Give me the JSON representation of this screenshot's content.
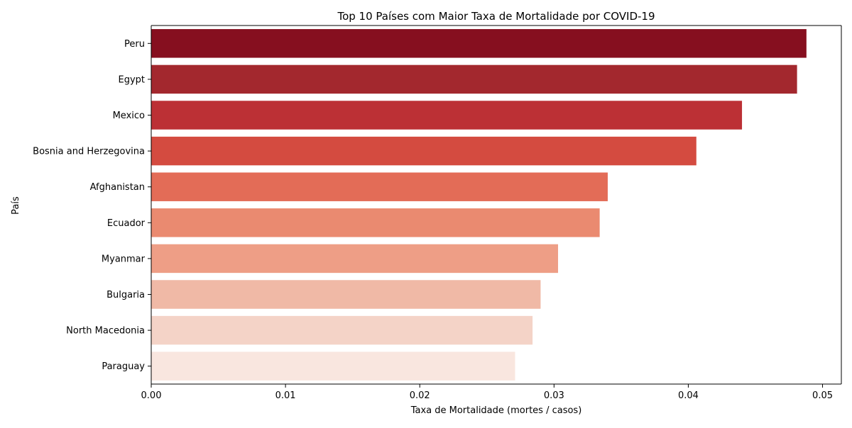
{
  "chart_data": {
    "type": "bar",
    "orientation": "horizontal",
    "title": "Top 10 Países com Maior Taxa de Mortalidade por COVID-19",
    "xlabel": "Taxa de Mortalidade (mortes / casos)",
    "ylabel": "País",
    "categories": [
      "Peru",
      "Egypt",
      "Mexico",
      "Bosnia and Herzegovina",
      "Afghanistan",
      "Ecuador",
      "Myanmar",
      "Bulgaria",
      "North Macedonia",
      "Paraguay"
    ],
    "values": [
      0.0488,
      0.0481,
      0.044,
      0.0406,
      0.034,
      0.0334,
      0.0303,
      0.029,
      0.0284,
      0.0271
    ],
    "colors": [
      "#860f1f",
      "#a3282e",
      "#bc3035",
      "#d44b40",
      "#e36c57",
      "#ea8a70",
      "#ee9e86",
      "#f0b9a6",
      "#f4d3c7",
      "#f9e6df"
    ],
    "xlim": [
      0,
      0.0514
    ],
    "xticks": [
      "0.00",
      "0.01",
      "0.02",
      "0.03",
      "0.04",
      "0.05"
    ],
    "grid": false
  }
}
